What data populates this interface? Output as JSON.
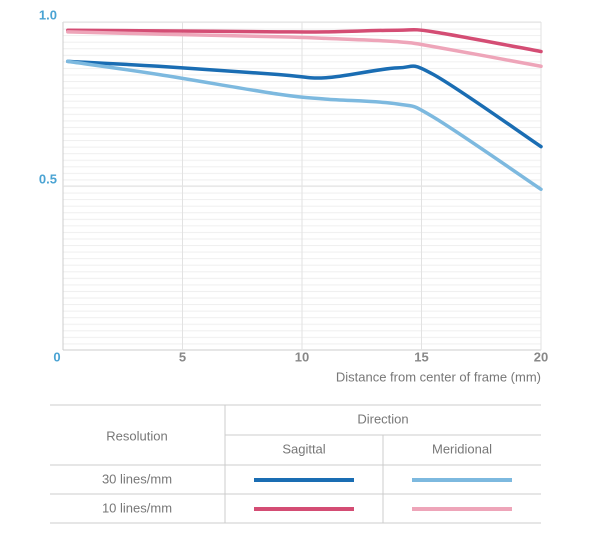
{
  "chart_data": {
    "type": "line",
    "x_label": "Distance from center of frame (mm)",
    "xlim": [
      0,
      20
    ],
    "xticks": [
      0,
      5,
      10,
      15,
      20
    ],
    "ylim": [
      0,
      1
    ],
    "yticks": [
      0.5,
      {
        "value": 1,
        "label": "1.0"
      }
    ],
    "grid": true,
    "x": [
      0.2,
      4,
      9,
      11,
      14,
      15.5,
      20
    ],
    "series_title": "Resolution",
    "direction_title": "Direction",
    "directions": [
      "Sagittal",
      "Meridional"
    ],
    "series": [
      {
        "name": "30 lines/mm",
        "lines": [
          {
            "color": "#1a6db3",
            "values": [
              0.88,
              0.865,
              0.84,
              0.83,
              0.86,
              0.84,
              0.62
            ]
          },
          {
            "color": "#7db9df",
            "values": [
              0.88,
              0.84,
              0.78,
              0.765,
              0.75,
              0.71,
              0.49
            ]
          }
        ]
      },
      {
        "name": "10 lines/mm",
        "lines": [
          {
            "color": "#d44d74",
            "values": [
              0.975,
              0.973,
              0.97,
              0.97,
              0.975,
              0.97,
              0.91
            ]
          },
          {
            "color": "#eea5b9",
            "values": [
              0.97,
              0.963,
              0.955,
              0.95,
              0.94,
              0.925,
              0.865
            ]
          }
        ]
      }
    ]
  }
}
